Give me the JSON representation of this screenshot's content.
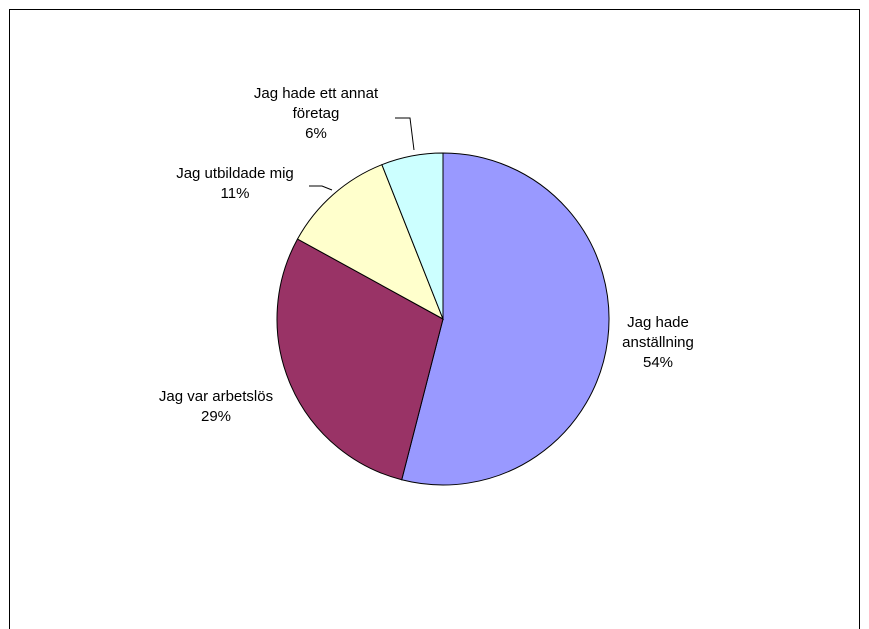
{
  "chart_data": {
    "type": "pie",
    "start_angle_deg": 0,
    "direction": "clockwise",
    "title": "",
    "slices": [
      {
        "label": [
          "Jag hade",
          "anställning"
        ],
        "pct_label": "54%",
        "value": 54,
        "color": "#9999FF"
      },
      {
        "label": [
          "Jag var arbetslös"
        ],
        "pct_label": "29%",
        "value": 29,
        "color": "#993366"
      },
      {
        "label": [
          "Jag utbildade mig"
        ],
        "pct_label": "11%",
        "value": 11,
        "color": "#FFFFCC"
      },
      {
        "label": [
          "Jag hade ett annat",
          "företag"
        ],
        "pct_label": "6%",
        "value": 6,
        "color": "#CCFFFF"
      }
    ]
  }
}
